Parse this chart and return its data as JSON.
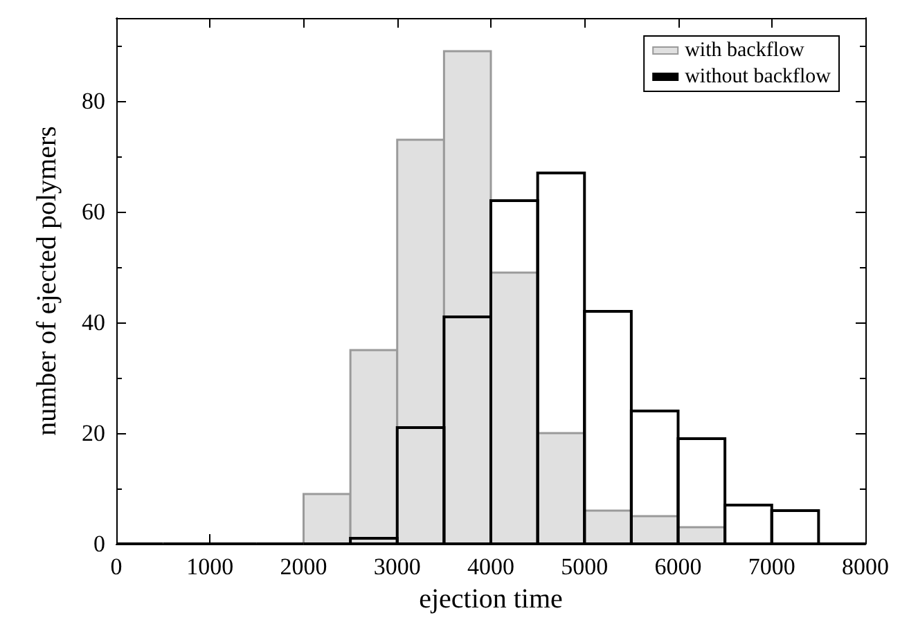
{
  "chart_data": {
    "type": "histogram",
    "xlabel": "ejection time",
    "ylabel": "number of ejected polymers",
    "bins": [
      0,
      500,
      1000,
      1500,
      2000,
      2500,
      3000,
      3500,
      4000,
      4500,
      5000,
      5500,
      6000,
      6500,
      7000,
      7500,
      8000
    ],
    "series": [
      {
        "name": "with backflow",
        "color": "#e0e0e0",
        "values": [
          0,
          0,
          0,
          0,
          9,
          35,
          73,
          89,
          49,
          20,
          6,
          5,
          3,
          0,
          0,
          0
        ]
      },
      {
        "name": "without backflow",
        "color": "#000000",
        "values": [
          0,
          0,
          0,
          0,
          0,
          1,
          21,
          41,
          62,
          67,
          42,
          24,
          19,
          7,
          6,
          0
        ]
      }
    ],
    "xlim": [
      0,
      8000
    ],
    "xticks": [
      0,
      1000,
      2000,
      3000,
      4000,
      5000,
      6000,
      7000,
      8000
    ],
    "ylim": [
      0,
      95
    ],
    "yticks": [
      0,
      20,
      40,
      60,
      80
    ],
    "grid": false,
    "legend": "top right"
  }
}
